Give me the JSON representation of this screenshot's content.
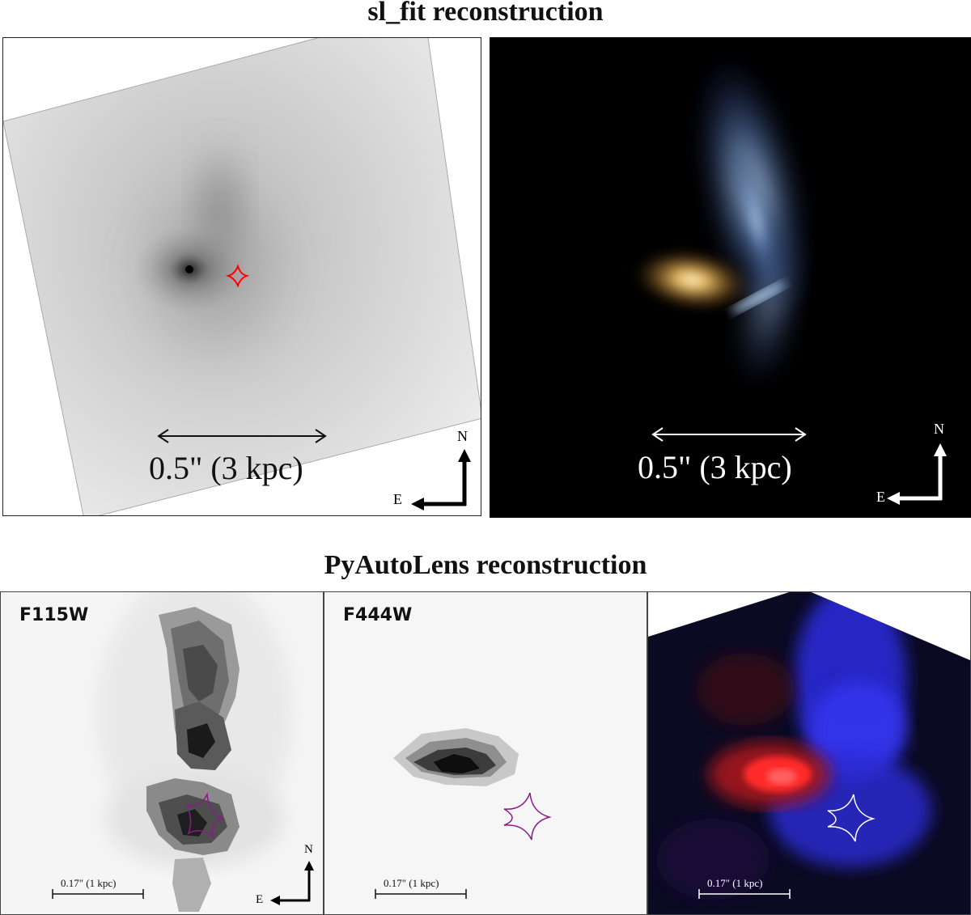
{
  "top_title": "sl_fit reconstruction",
  "bottom_title": "PyAutoLens reconstruction",
  "top_panels": {
    "scale_label": "0.5\" (3 kpc)",
    "north_label": "N",
    "east_label": "E",
    "caustic_color": "#ff0000"
  },
  "bottom_panels": {
    "band_1": "F115W",
    "band_2": "F444W",
    "scale_label": "0.17\" (1 kpc)",
    "north_label": "N",
    "east_label": "E",
    "caustic_color": "#8b1a8b"
  }
}
